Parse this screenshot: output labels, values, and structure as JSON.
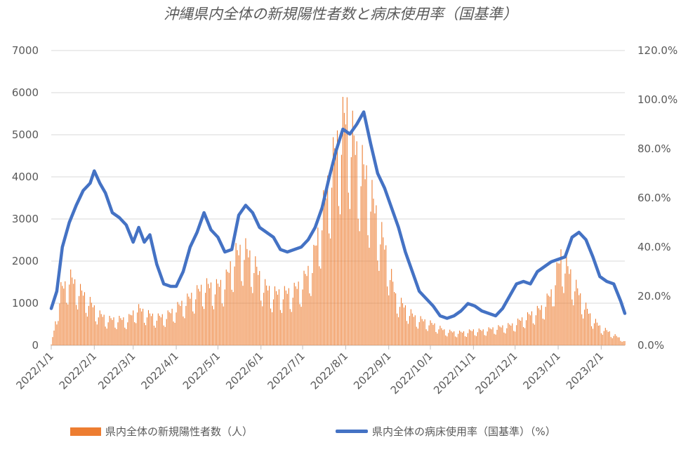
{
  "chart_data": {
    "type": "bar+line",
    "title": "沖縄県内全体の新規陽性者数と病床使用率（国基準）",
    "x_axis": {
      "start_date": "2022/1/1",
      "end_date": "2023/2/18",
      "tick_labels": [
        "2022/1/1",
        "2022/2/1",
        "2022/3/1",
        "2022/4/1",
        "2022/5/1",
        "2022/6/1",
        "2022/7/1",
        "2022/8/1",
        "2022/9/1",
        "2022/10/1",
        "2022/11/1",
        "2022/12/1",
        "2023/1/1",
        "2023/2/1"
      ]
    },
    "y_left": {
      "ylim": [
        0,
        7000
      ],
      "ticks": [
        "0",
        "1000",
        "2000",
        "3000",
        "4000",
        "5000",
        "6000",
        "7000"
      ]
    },
    "y_right": {
      "ylim": [
        0,
        120
      ],
      "ticks": [
        "0.0%",
        "20.0%",
        "40.0%",
        "60.0%",
        "80.0%",
        "100.0%",
        "120.0%"
      ]
    },
    "grid": "horizontal",
    "legend_position": "bottom",
    "series": [
      {
        "name": "県内全体の新規陽性者数（人）",
        "kind": "bar",
        "color": "#ED7D31",
        "weekly_peak_points": [
          [
            "2022/1/1",
            20
          ],
          [
            "2022/1/4",
            600
          ],
          [
            "2022/1/8",
            1500
          ],
          [
            "2022/1/11",
            1600
          ],
          [
            "2022/1/14",
            1850
          ],
          [
            "2022/1/21",
            1500
          ],
          [
            "2022/1/28",
            1200
          ],
          [
            "2022/2/4",
            850
          ],
          [
            "2022/2/11",
            700
          ],
          [
            "2022/2/18",
            700
          ],
          [
            "2022/2/25",
            700
          ],
          [
            "2022/3/4",
            1000
          ],
          [
            "2022/3/11",
            850
          ],
          [
            "2022/3/18",
            750
          ],
          [
            "2022/3/25",
            800
          ],
          [
            "2022/4/1",
            1000
          ],
          [
            "2022/4/8",
            1200
          ],
          [
            "2022/4/15",
            1400
          ],
          [
            "2022/4/22",
            1600
          ],
          [
            "2022/4/29",
            1550
          ],
          [
            "2022/5/6",
            1700
          ],
          [
            "2022/5/13",
            2400
          ],
          [
            "2022/5/20",
            2600
          ],
          [
            "2022/5/27",
            2200
          ],
          [
            "2022/6/3",
            1600
          ],
          [
            "2022/6/10",
            1400
          ],
          [
            "2022/6/17",
            1400
          ],
          [
            "2022/6/24",
            1450
          ],
          [
            "2022/7/1",
            1700
          ],
          [
            "2022/7/8",
            2200
          ],
          [
            "2022/7/15",
            3500
          ],
          [
            "2022/7/22",
            4800
          ],
          [
            "2022/7/29",
            5800
          ],
          [
            "2022/8/2",
            6200
          ],
          [
            "2022/8/9",
            5100
          ],
          [
            "2022/8/16",
            4500
          ],
          [
            "2022/8/23",
            3500
          ],
          [
            "2022/8/30",
            2500
          ],
          [
            "2022/9/6",
            1300
          ],
          [
            "2022/9/13",
            1000
          ],
          [
            "2022/9/20",
            750
          ],
          [
            "2022/9/27",
            650
          ],
          [
            "2022/10/4",
            550
          ],
          [
            "2022/10/11",
            400
          ],
          [
            "2022/10/18",
            350
          ],
          [
            "2022/10/25",
            350
          ],
          [
            "2022/11/1",
            400
          ],
          [
            "2022/11/8",
            400
          ],
          [
            "2022/11/15",
            450
          ],
          [
            "2022/11/22",
            500
          ],
          [
            "2022/11/29",
            550
          ],
          [
            "2022/12/6",
            700
          ],
          [
            "2022/12/13",
            850
          ],
          [
            "2022/12/20",
            1000
          ],
          [
            "2022/12/27",
            1400
          ],
          [
            "2023/1/3",
            2400
          ],
          [
            "2023/1/10",
            1900
          ],
          [
            "2023/1/17",
            1300
          ],
          [
            "2023/1/24",
            800
          ],
          [
            "2023/1/31",
            500
          ],
          [
            "2023/2/7",
            350
          ],
          [
            "2023/2/14",
            200
          ],
          [
            "2023/2/18",
            100
          ]
        ]
      },
      {
        "name": "県内全体の病床使用率（国基準）（%）",
        "kind": "line",
        "color": "#4472C4",
        "points": [
          [
            "2022/1/1",
            15
          ],
          [
            "2022/1/5",
            22
          ],
          [
            "2022/1/9",
            40
          ],
          [
            "2022/1/14",
            50
          ],
          [
            "2022/1/19",
            57
          ],
          [
            "2022/1/24",
            63
          ],
          [
            "2022/1/29",
            66
          ],
          [
            "2022/2/1",
            71
          ],
          [
            "2022/2/5",
            66
          ],
          [
            "2022/2/9",
            62
          ],
          [
            "2022/2/14",
            54
          ],
          [
            "2022/2/19",
            52
          ],
          [
            "2022/2/24",
            49
          ],
          [
            "2022/3/1",
            42
          ],
          [
            "2022/3/5",
            48
          ],
          [
            "2022/3/9",
            42
          ],
          [
            "2022/3/13",
            45
          ],
          [
            "2022/3/18",
            33
          ],
          [
            "2022/3/23",
            25
          ],
          [
            "2022/3/28",
            24
          ],
          [
            "2022/4/1",
            24
          ],
          [
            "2022/4/6",
            30
          ],
          [
            "2022/4/11",
            40
          ],
          [
            "2022/4/16",
            46
          ],
          [
            "2022/4/21",
            54
          ],
          [
            "2022/4/26",
            47
          ],
          [
            "2022/5/1",
            44
          ],
          [
            "2022/5/6",
            38
          ],
          [
            "2022/5/11",
            39
          ],
          [
            "2022/5/16",
            53
          ],
          [
            "2022/5/21",
            57
          ],
          [
            "2022/5/26",
            54
          ],
          [
            "2022/5/31",
            48
          ],
          [
            "2022/6/5",
            46
          ],
          [
            "2022/6/10",
            44
          ],
          [
            "2022/6/15",
            39
          ],
          [
            "2022/6/20",
            38
          ],
          [
            "2022/6/25",
            39
          ],
          [
            "2022/6/30",
            40
          ],
          [
            "2022/7/5",
            43
          ],
          [
            "2022/7/10",
            48
          ],
          [
            "2022/7/15",
            56
          ],
          [
            "2022/7/20",
            68
          ],
          [
            "2022/7/25",
            79
          ],
          [
            "2022/7/30",
            88
          ],
          [
            "2022/8/4",
            86
          ],
          [
            "2022/8/9",
            90
          ],
          [
            "2022/8/14",
            95
          ],
          [
            "2022/8/19",
            82
          ],
          [
            "2022/8/24",
            70
          ],
          [
            "2022/8/29",
            64
          ],
          [
            "2022/9/3",
            56
          ],
          [
            "2022/9/8",
            48
          ],
          [
            "2022/9/13",
            38
          ],
          [
            "2022/9/18",
            30
          ],
          [
            "2022/9/23",
            22
          ],
          [
            "2022/9/28",
            19
          ],
          [
            "2022/10/3",
            16
          ],
          [
            "2022/10/8",
            12
          ],
          [
            "2022/10/13",
            11
          ],
          [
            "2022/10/18",
            12
          ],
          [
            "2022/10/23",
            14
          ],
          [
            "2022/10/28",
            17
          ],
          [
            "2022/11/2",
            16
          ],
          [
            "2022/11/7",
            14
          ],
          [
            "2022/11/12",
            13
          ],
          [
            "2022/11/17",
            12
          ],
          [
            "2022/11/22",
            15
          ],
          [
            "2022/11/27",
            20
          ],
          [
            "2022/12/2",
            25
          ],
          [
            "2022/12/7",
            26
          ],
          [
            "2022/12/12",
            25
          ],
          [
            "2022/12/17",
            30
          ],
          [
            "2022/12/22",
            32
          ],
          [
            "2022/12/27",
            34
          ],
          [
            "2023/1/1",
            35
          ],
          [
            "2023/1/6",
            36
          ],
          [
            "2023/1/11",
            44
          ],
          [
            "2023/1/16",
            46
          ],
          [
            "2023/1/21",
            43
          ],
          [
            "2023/1/26",
            36
          ],
          [
            "2023/1/31",
            28
          ],
          [
            "2023/2/5",
            26
          ],
          [
            "2023/2/10",
            25
          ],
          [
            "2023/2/15",
            18
          ],
          [
            "2023/2/18",
            13
          ]
        ]
      }
    ]
  }
}
